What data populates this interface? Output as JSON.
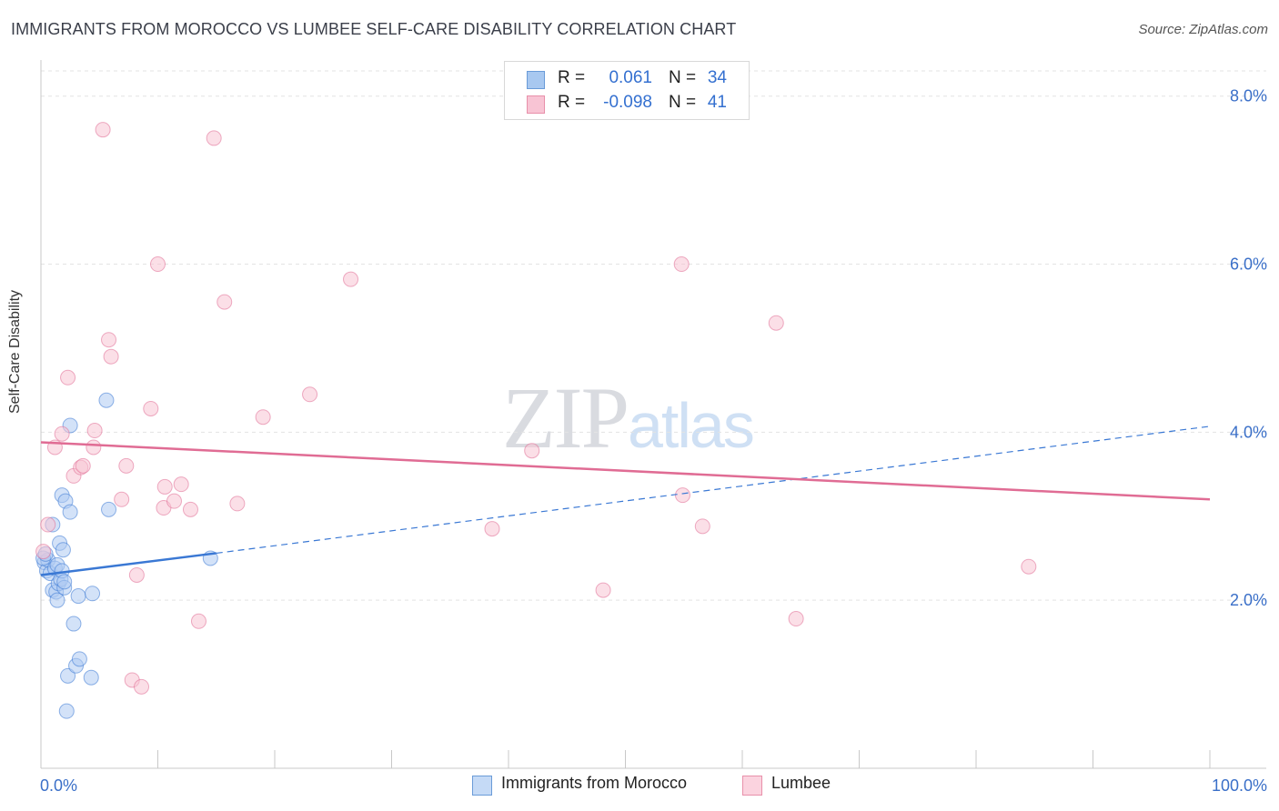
{
  "title": "IMMIGRANTS FROM MOROCCO VS LUMBEE SELF-CARE DISABILITY CORRELATION CHART",
  "source": "Source: ZipAtlas.com",
  "watermark": {
    "zip": "ZIP",
    "atlas": "atlas"
  },
  "legend": {
    "rows": [
      {
        "r_label": "R =",
        "r_value": "0.061",
        "n_label": "N =",
        "n_value": "34",
        "color": "#a8c8f0",
        "border": "#6a9bd8"
      },
      {
        "r_label": "R =",
        "r_value": "-0.098",
        "n_label": "N =",
        "n_value": "41",
        "color": "#f8c4d4",
        "border": "#e890aa"
      }
    ]
  },
  "bottom_legend": [
    {
      "label": "Immigrants from Morocco",
      "color": "#c5daf6",
      "border": "#6a9bd8"
    },
    {
      "label": "Lumbee",
      "color": "#fbd3df",
      "border": "#e890aa"
    }
  ],
  "chart_data": {
    "type": "scatter",
    "title": "IMMIGRANTS FROM MOROCCO VS LUMBEE SELF-CARE DISABILITY CORRELATION CHART",
    "xlabel": "",
    "ylabel": "Self-Care Disability",
    "xlim": [
      0,
      100
    ],
    "ylim": [
      0,
      8.3
    ],
    "x_tick_labels": [
      "0.0%",
      "100.0%"
    ],
    "y_ticks": [
      2.0,
      4.0,
      6.0,
      8.0
    ],
    "y_tick_labels": [
      "2.0%",
      "4.0%",
      "6.0%",
      "8.0%"
    ],
    "grid": true,
    "series": [
      {
        "name": "Immigrants from Morocco",
        "color": "#3a78d4",
        "fill": "#aecbf2",
        "points": [
          [
            0.3,
            2.45
          ],
          [
            0.5,
            2.35
          ],
          [
            0.6,
            2.48
          ],
          [
            0.8,
            2.32
          ],
          [
            1.0,
            2.9
          ],
          [
            1.0,
            2.12
          ],
          [
            1.2,
            2.38
          ],
          [
            1.3,
            2.1
          ],
          [
            1.4,
            2.42
          ],
          [
            1.5,
            2.2
          ],
          [
            1.4,
            2.0
          ],
          [
            1.6,
            2.68
          ],
          [
            1.7,
            2.25
          ],
          [
            1.8,
            2.35
          ],
          [
            1.8,
            3.25
          ],
          [
            1.9,
            2.6
          ],
          [
            2.0,
            2.15
          ],
          [
            2.0,
            2.22
          ],
          [
            2.1,
            3.18
          ],
          [
            2.2,
            0.68
          ],
          [
            2.3,
            1.1
          ],
          [
            2.5,
            3.05
          ],
          [
            2.5,
            4.08
          ],
          [
            2.8,
            1.72
          ],
          [
            3.0,
            1.22
          ],
          [
            3.2,
            2.05
          ],
          [
            3.3,
            1.3
          ],
          [
            4.3,
            1.08
          ],
          [
            4.4,
            2.08
          ],
          [
            5.6,
            4.38
          ],
          [
            5.8,
            3.08
          ],
          [
            14.5,
            2.5
          ],
          [
            0.2,
            2.5
          ],
          [
            0.4,
            2.55
          ]
        ],
        "trend": {
          "x": [
            0,
            15
          ],
          "y": [
            2.3,
            2.56
          ]
        },
        "trend_extension": {
          "x": [
            15,
            100
          ],
          "y": [
            2.56,
            4.07
          ]
        }
      },
      {
        "name": "Lumbee",
        "color": "#e06c94",
        "fill": "#f8c4d4",
        "points": [
          [
            0.2,
            2.58
          ],
          [
            0.6,
            2.9
          ],
          [
            1.2,
            3.82
          ],
          [
            1.8,
            3.98
          ],
          [
            2.3,
            4.65
          ],
          [
            2.8,
            3.48
          ],
          [
            3.4,
            3.58
          ],
          [
            3.6,
            3.6
          ],
          [
            4.5,
            3.82
          ],
          [
            4.6,
            4.02
          ],
          [
            5.3,
            7.6
          ],
          [
            5.8,
            5.1
          ],
          [
            6.0,
            4.9
          ],
          [
            6.9,
            3.2
          ],
          [
            7.3,
            3.6
          ],
          [
            7.8,
            1.05
          ],
          [
            8.2,
            2.3
          ],
          [
            8.6,
            0.97
          ],
          [
            9.4,
            4.28
          ],
          [
            10.0,
            6.0
          ],
          [
            10.5,
            3.1
          ],
          [
            10.6,
            3.35
          ],
          [
            11.4,
            3.18
          ],
          [
            12.0,
            3.38
          ],
          [
            12.8,
            3.08
          ],
          [
            13.5,
            1.75
          ],
          [
            14.8,
            7.5
          ],
          [
            15.7,
            5.55
          ],
          [
            16.8,
            3.15
          ],
          [
            19.0,
            4.18
          ],
          [
            23.0,
            4.45
          ],
          [
            26.5,
            5.82
          ],
          [
            38.6,
            2.85
          ],
          [
            42.0,
            3.78
          ],
          [
            48.1,
            2.12
          ],
          [
            54.8,
            6.0
          ],
          [
            54.9,
            3.25
          ],
          [
            56.6,
            2.88
          ],
          [
            62.9,
            5.3
          ],
          [
            64.6,
            1.78
          ],
          [
            84.5,
            2.4
          ]
        ],
        "trend": {
          "x": [
            0,
            100
          ],
          "y": [
            3.88,
            3.2
          ]
        }
      }
    ]
  }
}
